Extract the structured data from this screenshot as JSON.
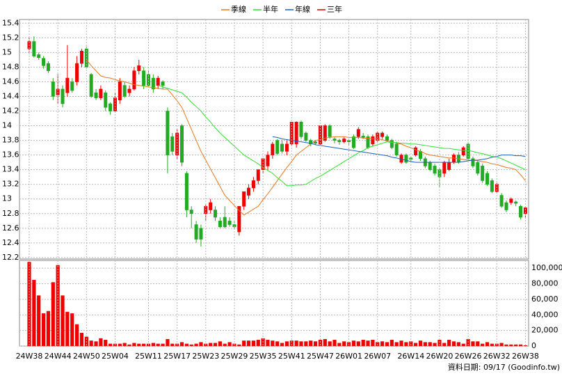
{
  "chart_data": [
    {
      "type": "candlestick",
      "up_color": "#ee0000",
      "down_color": "#22aa22",
      "open": [
        15.05,
        15.15,
        14.97,
        14.92,
        14.85,
        14.6,
        14.42,
        14.5,
        14.45,
        14.6,
        14.6,
        14.85,
        15.05,
        14.7,
        14.45,
        14.38,
        14.45,
        14.3,
        14.2,
        14.35,
        14.55,
        14.45,
        14.5,
        14.75,
        14.75,
        14.7,
        14.65,
        14.55,
        14.6,
        14.2,
        13.85,
        13.6,
        14.0,
        13.35,
        12.85,
        12.65,
        12.6,
        12.8,
        12.85,
        12.85,
        12.7,
        12.75,
        12.7,
        12.65,
        12.55,
        12.9,
        13.05,
        13.15,
        13.25,
        13.4,
        13.45,
        13.6,
        13.8,
        13.75,
        13.65,
        13.75,
        13.75,
        14.05,
        13.9,
        13.8,
        13.78,
        13.75,
        13.8,
        14.0,
        13.82,
        13.8,
        13.78,
        13.8,
        13.85,
        13.85,
        13.86,
        13.85,
        13.75,
        13.8,
        13.85,
        13.85,
        13.8,
        13.75,
        13.5,
        13.6,
        13.56,
        13.6,
        13.65,
        13.55,
        13.5,
        13.45,
        13.4,
        13.35,
        13.4,
        13.5,
        13.6,
        13.6,
        13.75,
        13.55,
        13.5,
        13.45,
        13.35,
        13.25,
        13.1,
        13.05,
        12.95,
        12.95,
        12.96,
        12.9,
        12.8
      ],
      "high": [
        15.2,
        15.22,
        15.0,
        14.95,
        14.88,
        14.65,
        14.7,
        14.55,
        15.1,
        14.65,
        14.95,
        15.05,
        15.08,
        14.72,
        14.5,
        14.55,
        14.48,
        14.32,
        14.45,
        14.65,
        14.6,
        14.55,
        14.8,
        14.9,
        14.8,
        14.75,
        14.7,
        14.68,
        14.62,
        14.25,
        13.9,
        13.95,
        14.02,
        13.38,
        12.9,
        12.7,
        12.65,
        12.92,
        13.0,
        12.9,
        12.75,
        12.9,
        12.75,
        12.7,
        12.9,
        13.1,
        13.2,
        13.3,
        13.4,
        13.55,
        13.65,
        13.78,
        13.82,
        13.8,
        13.8,
        14.05,
        14.06,
        14.07,
        13.92,
        13.82,
        13.8,
        14.0,
        14.02,
        14.02,
        13.84,
        13.82,
        13.84,
        13.82,
        13.88,
        13.98,
        13.9,
        13.88,
        13.88,
        13.92,
        13.92,
        13.88,
        13.82,
        13.78,
        13.62,
        13.62,
        13.58,
        13.72,
        13.68,
        13.58,
        13.52,
        13.48,
        13.42,
        13.52,
        13.55,
        13.62,
        13.64,
        13.72,
        13.78,
        13.58,
        13.52,
        13.48,
        13.38,
        13.28,
        13.22,
        13.08,
        12.98,
        13.02,
        12.98,
        12.92,
        12.9
      ],
      "low": [
        15.0,
        14.93,
        14.9,
        14.78,
        14.72,
        14.35,
        14.3,
        14.25,
        14.4,
        14.45,
        14.55,
        14.8,
        14.78,
        14.38,
        14.35,
        14.35,
        14.2,
        14.15,
        14.18,
        14.3,
        14.38,
        14.4,
        14.48,
        14.7,
        14.5,
        14.52,
        14.45,
        14.5,
        14.5,
        13.35,
        13.6,
        13.55,
        13.45,
        12.75,
        12.6,
        12.4,
        12.35,
        12.7,
        12.8,
        12.7,
        12.6,
        12.6,
        12.62,
        12.6,
        12.5,
        12.85,
        13.0,
        13.1,
        13.2,
        13.35,
        13.4,
        13.55,
        13.6,
        13.62,
        13.6,
        13.72,
        13.7,
        13.82,
        13.78,
        13.72,
        13.74,
        13.72,
        13.78,
        13.82,
        13.76,
        13.74,
        13.76,
        13.74,
        13.68,
        13.82,
        13.82,
        13.68,
        13.72,
        13.78,
        13.82,
        13.78,
        13.68,
        13.58,
        13.48,
        13.48,
        13.5,
        13.58,
        13.52,
        13.42,
        13.38,
        13.32,
        13.15,
        13.3,
        13.38,
        13.48,
        13.48,
        13.58,
        13.52,
        13.42,
        13.32,
        13.22,
        13.18,
        13.08,
        13.08,
        12.88,
        12.82,
        12.92,
        12.9,
        12.72,
        12.74
      ],
      "close": [
        15.15,
        14.95,
        14.93,
        14.82,
        14.75,
        14.4,
        14.5,
        14.3,
        14.65,
        14.48,
        14.85,
        15.02,
        14.8,
        14.4,
        14.38,
        14.5,
        14.25,
        14.2,
        14.38,
        14.6,
        14.4,
        14.5,
        14.75,
        14.82,
        14.55,
        14.55,
        14.5,
        14.65,
        14.55,
        13.6,
        13.65,
        13.9,
        13.5,
        12.85,
        12.8,
        12.45,
        12.45,
        12.9,
        12.95,
        12.75,
        12.62,
        12.62,
        12.65,
        12.62,
        12.9,
        13.1,
        13.15,
        13.25,
        13.4,
        13.55,
        13.6,
        13.75,
        13.62,
        13.65,
        13.75,
        14.05,
        14.05,
        13.85,
        13.8,
        13.75,
        13.76,
        14.0,
        14.0,
        13.85,
        13.8,
        13.78,
        13.82,
        13.78,
        13.7,
        13.95,
        13.84,
        13.7,
        13.85,
        13.9,
        13.9,
        13.8,
        13.7,
        13.6,
        13.6,
        13.5,
        13.54,
        13.7,
        13.55,
        13.45,
        13.4,
        13.35,
        13.3,
        13.5,
        13.5,
        13.6,
        13.5,
        13.7,
        13.55,
        13.45,
        13.35,
        13.25,
        13.2,
        13.1,
        13.2,
        12.9,
        12.85,
        13.0,
        12.94,
        12.75,
        12.88
      ],
      "series": [
        {
          "name": "季線",
          "color": "#e87722",
          "values": [
            null,
            null,
            null,
            null,
            null,
            null,
            null,
            null,
            null,
            null,
            null,
            null,
            14.9,
            14.82,
            14.75,
            14.68,
            14.66,
            14.65,
            14.63,
            14.61,
            14.6,
            14.58,
            14.56,
            14.55,
            14.54,
            14.53,
            14.52,
            14.51,
            14.5,
            14.5,
            14.42,
            14.34,
            14.25,
            14.1,
            13.95,
            13.8,
            13.65,
            13.53,
            13.41,
            13.29,
            13.17,
            13.05,
            12.98,
            12.91,
            12.84,
            12.78,
            12.82,
            12.86,
            12.9,
            12.99,
            13.07,
            13.16,
            13.25,
            13.34,
            13.43,
            13.51,
            13.6,
            13.65,
            13.7,
            13.75,
            13.8,
            13.81,
            13.83,
            13.84,
            13.85,
            13.85,
            13.85,
            13.84,
            13.84,
            13.84,
            13.83,
            13.83,
            13.82,
            13.82,
            13.81,
            13.79,
            13.78,
            13.76,
            13.75,
            13.72,
            13.7,
            13.67,
            13.65,
            13.62,
            13.6,
            13.59,
            13.58,
            13.57,
            13.56,
            13.56,
            13.55,
            13.54,
            13.53,
            13.53,
            13.52,
            13.51,
            13.5,
            13.48,
            13.47,
            13.45,
            13.43,
            13.42,
            13.4,
            13.33,
            13.25
          ]
        },
        {
          "name": "半年",
          "color": "#33dd33",
          "values": [
            null,
            null,
            null,
            null,
            null,
            null,
            null,
            null,
            null,
            null,
            null,
            null,
            null,
            null,
            null,
            null,
            null,
            null,
            null,
            null,
            null,
            null,
            null,
            null,
            null,
            null,
            null,
            14.55,
            14.53,
            14.51,
            14.49,
            14.47,
            14.45,
            14.39,
            14.32,
            14.26,
            14.2,
            14.12,
            14.05,
            13.97,
            13.9,
            13.84,
            13.78,
            13.72,
            13.66,
            13.6,
            13.56,
            13.52,
            13.48,
            13.43,
            13.39,
            13.35,
            13.29,
            13.24,
            13.18,
            13.18,
            13.19,
            13.19,
            13.2,
            13.24,
            13.28,
            13.31,
            13.35,
            13.39,
            13.43,
            13.47,
            13.51,
            13.55,
            13.59,
            13.63,
            13.66,
            13.7,
            13.72,
            13.74,
            13.76,
            13.78,
            13.77,
            13.77,
            13.76,
            13.76,
            13.75,
            13.75,
            13.74,
            13.73,
            13.72,
            13.71,
            13.7,
            13.69,
            13.69,
            13.68,
            13.67,
            13.66,
            13.66,
            13.65,
            13.63,
            13.62,
            13.6,
            13.58,
            13.57,
            13.55,
            13.52,
            13.49,
            13.46,
            13.43,
            13.4
          ]
        },
        {
          "name": "年線",
          "color": "#1a5fbf",
          "values": [
            null,
            null,
            null,
            null,
            null,
            null,
            null,
            null,
            null,
            null,
            null,
            null,
            null,
            null,
            null,
            null,
            null,
            null,
            null,
            null,
            null,
            null,
            null,
            null,
            null,
            null,
            null,
            null,
            null,
            null,
            null,
            null,
            null,
            null,
            null,
            null,
            null,
            null,
            null,
            null,
            null,
            null,
            null,
            null,
            null,
            null,
            null,
            null,
            null,
            null,
            null,
            13.85,
            13.84,
            13.82,
            13.81,
            13.8,
            13.79,
            13.78,
            13.77,
            13.76,
            13.74,
            13.73,
            13.72,
            13.71,
            13.7,
            13.69,
            13.68,
            13.67,
            13.66,
            13.65,
            13.64,
            13.63,
            13.62,
            13.61,
            13.6,
            13.59,
            13.57,
            13.56,
            13.54,
            13.53,
            13.51,
            13.5,
            13.5,
            13.5,
            13.5,
            13.5,
            13.5,
            13.5,
            13.5,
            13.5,
            13.5,
            13.51,
            13.52,
            13.53,
            13.53,
            13.54,
            13.55,
            13.57,
            13.58,
            13.6,
            13.6,
            13.6,
            13.59,
            13.59,
            13.58
          ]
        },
        {
          "name": "三年",
          "color": "#cc0000",
          "values": [
            null,
            null,
            null,
            null,
            null,
            null,
            null,
            null,
            null,
            null,
            null,
            null,
            null,
            null,
            null,
            null,
            null,
            null,
            null,
            null,
            null,
            null,
            null,
            null,
            null,
            null,
            null,
            null,
            null,
            null,
            null,
            null,
            null,
            null,
            null,
            null,
            null,
            null,
            null,
            null,
            null,
            null,
            null,
            null,
            null,
            null,
            null,
            null,
            null,
            null,
            null,
            null,
            null,
            null,
            null,
            null,
            null,
            null,
            null,
            null,
            null,
            null,
            null,
            null,
            null,
            null,
            null,
            null,
            null,
            null,
            null,
            null,
            null,
            null,
            null,
            null,
            null,
            null,
            null,
            null,
            null,
            null,
            null,
            null,
            null,
            null,
            null,
            null,
            null,
            null,
            null,
            null,
            null,
            null,
            null,
            null,
            null,
            null,
            null,
            null,
            null,
            null,
            null,
            null,
            null
          ]
        }
      ],
      "ylim": [
        12.18,
        15.45
      ],
      "yticks": [
        12.2,
        12.4,
        12.6,
        12.8,
        13,
        13.2,
        13.4,
        13.6,
        13.8,
        14,
        14.2,
        14.4,
        14.6,
        14.8,
        15,
        15.2,
        15.4
      ],
      "grid": true
    },
    {
      "type": "bar",
      "color": "#ee0000",
      "categories": [
        "24W38",
        null,
        null,
        null,
        null,
        null,
        "24W44",
        null,
        null,
        null,
        null,
        null,
        "24W50",
        null,
        null,
        null,
        null,
        null,
        "25W04",
        null,
        null,
        null,
        null,
        null,
        null,
        "25W11",
        null,
        null,
        null,
        null,
        null,
        "25W17",
        null,
        null,
        null,
        null,
        null,
        "25W23",
        null,
        null,
        null,
        null,
        null,
        "25W29",
        null,
        null,
        null,
        null,
        null,
        "25W35",
        null,
        null,
        null,
        null,
        null,
        "25W41",
        null,
        null,
        null,
        null,
        null,
        "25W47",
        null,
        null,
        null,
        null,
        null,
        "26W01",
        null,
        null,
        null,
        null,
        null,
        "26W07",
        null,
        null,
        null,
        null,
        null,
        null,
        "26W14",
        null,
        null,
        null,
        null,
        null,
        "26W20",
        null,
        null,
        null,
        null,
        null,
        "26W26",
        null,
        null,
        null,
        null,
        null,
        "26W32",
        null,
        null,
        null,
        null,
        null,
        "26W38"
      ],
      "values": [
        108000,
        85000,
        65000,
        42000,
        45000,
        82000,
        104000,
        65000,
        44000,
        42000,
        28000,
        17000,
        12000,
        7000,
        6000,
        10000,
        8000,
        3000,
        3000,
        3000,
        4000,
        2000,
        4000,
        3000,
        3000,
        3000,
        4000,
        3000,
        3000,
        9000,
        3000,
        3000,
        5000,
        3000,
        2000,
        3000,
        5000,
        3000,
        4000,
        4000,
        6000,
        3000,
        5000,
        3000,
        2000,
        7000,
        7000,
        7000,
        8000,
        10000,
        8000,
        7000,
        6000,
        4000,
        6000,
        7000,
        7000,
        6000,
        6000,
        7000,
        6000,
        8000,
        9000,
        6000,
        8000,
        4000,
        6000,
        5000,
        7000,
        6000,
        8000,
        7000,
        8000,
        5000,
        6000,
        5000,
        8000,
        5000,
        7000,
        5000,
        6000,
        4000,
        7000,
        5000,
        5000,
        4000,
        8000,
        4000,
        8000,
        6000,
        5000,
        3000,
        9000,
        6000,
        6000,
        3000,
        5000,
        3000,
        3000,
        4000,
        2000,
        2000,
        2000,
        2000,
        1000
      ],
      "ylim": [
        0,
        110000
      ],
      "yticks": [
        0,
        {
          "value": 20000,
          "label": "20,000"
        },
        {
          "value": 40000,
          "label": "40,000"
        },
        {
          "value": 60000,
          "label": "60,000"
        },
        {
          "value": 80000,
          "label": "80,000"
        },
        {
          "value": 100000,
          "label": "100,000"
        }
      ],
      "grid": true,
      "annotation": "資料日期: 09/17 (Goodinfo.tw)"
    }
  ]
}
